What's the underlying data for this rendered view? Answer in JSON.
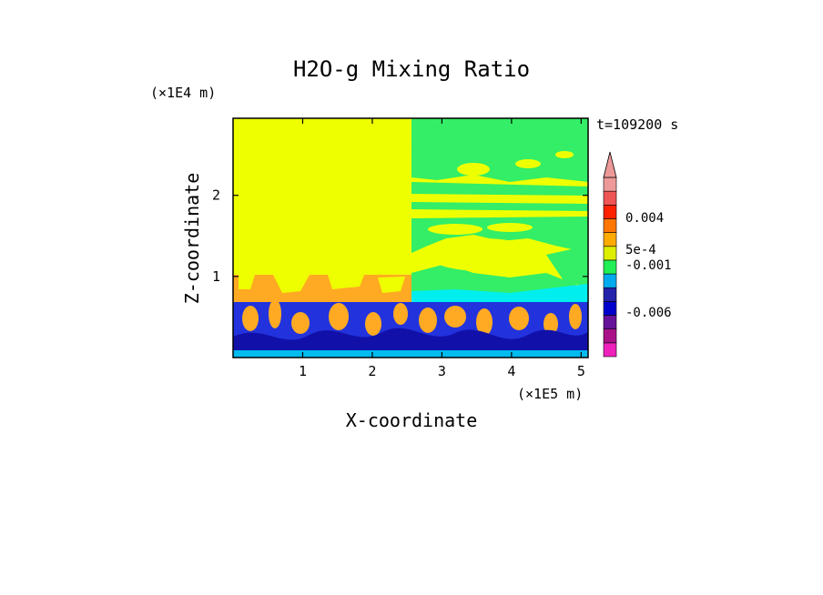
{
  "chart_data": {
    "type": "heatmap",
    "title": "H2O-g Mixing Ratio",
    "xlabel": "X-coordinate",
    "ylabel": "Z-coordinate",
    "x_unit": "(×1E5 m)",
    "y_unit": "(×1E4 m)",
    "time_label": "t=109200 s",
    "xlim": [
      0,
      5.1
    ],
    "ylim": [
      0,
      2.95
    ],
    "xticks": [
      "1",
      "2",
      "3",
      "4",
      "5"
    ],
    "xtick_values": [
      1,
      2,
      3,
      4,
      5
    ],
    "yticks": [
      "1",
      "2"
    ],
    "ytick_values": [
      1,
      2
    ],
    "colorbar": {
      "extend": "max",
      "tick_labels": [
        "0.004",
        "5e-4",
        "-0.001",
        "-0.006"
      ],
      "colors_bottom_to_top": [
        "#ee22bb",
        "#aa1188",
        "#661199",
        "#0000cc",
        "#2222aa",
        "#00aaee",
        "#22ee55",
        "#ddee00",
        "#ffaa00",
        "#ff7700",
        "#ff2200",
        "#ee5555",
        "#ee9999"
      ],
      "extend_color": "#ee9999"
    },
    "field_colors": {
      "upper": "#eeff00",
      "moist": "#33ee66",
      "cyan": "#00eeee",
      "orange": "#ffaa22",
      "low_blue": "#2233dd",
      "deep_blue": "#1111aa"
    }
  }
}
